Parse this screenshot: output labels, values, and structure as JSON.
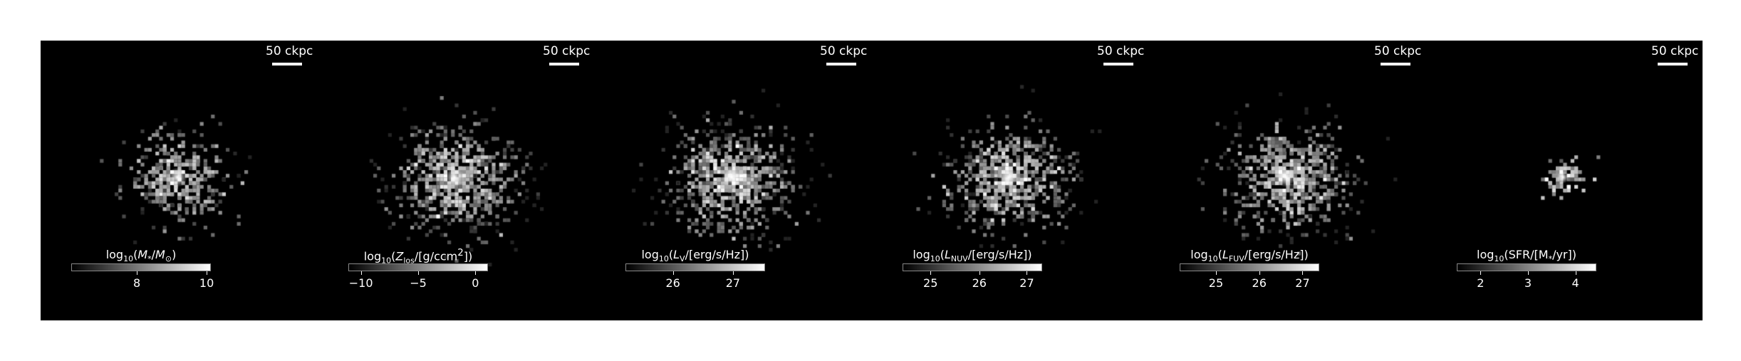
{
  "panels": [
    {
      "id": "stellar-mass",
      "scale_label": "50 ckpc",
      "cbar_label_html": "log<sub>10</sub>(<i>M</i><sub>*</sub>/<i>M</i><sub>⊙</sub>)",
      "ticks": [
        {
          "label": "8",
          "frac": 0.47
        },
        {
          "label": "10",
          "frac": 0.97
        }
      ],
      "seed": 11,
      "density": 0.55,
      "spread": 0.8
    },
    {
      "id": "metallicity",
      "scale_label": "50 ckpc",
      "cbar_label_html": "log<sub>10</sub>(<i>Z</i><sub>los</sub>/[g/ccm<sup>2</sup>])",
      "ticks": [
        {
          "label": "−10",
          "frac": 0.09
        },
        {
          "label": "−5",
          "frac": 0.5
        },
        {
          "label": "0",
          "frac": 0.91
        }
      ],
      "seed": 23,
      "density": 1.0,
      "spread": 1.0
    },
    {
      "id": "luminosity-v",
      "scale_label": "50 ckpc",
      "cbar_label_html": "log<sub>10</sub>(<i>L</i><sub>V</sub>/[erg/s/Hz])",
      "ticks": [
        {
          "label": "26",
          "frac": 0.34
        },
        {
          "label": "27",
          "frac": 0.77
        }
      ],
      "seed": 37,
      "density": 1.0,
      "spread": 1.0
    },
    {
      "id": "luminosity-nuv",
      "scale_label": "50 ckpc",
      "cbar_label_html": "log<sub>10</sub>(<i>L</i><sub>NUV</sub>/[erg/s/Hz])",
      "ticks": [
        {
          "label": "25",
          "frac": 0.2
        },
        {
          "label": "26",
          "frac": 0.55
        },
        {
          "label": "27",
          "frac": 0.89
        }
      ],
      "seed": 53,
      "density": 1.0,
      "spread": 1.0
    },
    {
      "id": "luminosity-fuv",
      "scale_label": "50 ckpc",
      "cbar_label_html": "log<sub>10</sub>(<i>L</i><sub>FUV</sub>/[erg/s/Hz])",
      "ticks": [
        {
          "label": "25",
          "frac": 0.26
        },
        {
          "label": "26",
          "frac": 0.57
        },
        {
          "label": "27",
          "frac": 0.88
        }
      ],
      "seed": 71,
      "density": 1.0,
      "spread": 1.0
    },
    {
      "id": "sfr",
      "scale_label": "50 ckpc",
      "cbar_label_html": "log<sub>10</sub>(SFR/[M<sub>*</sub>/yr])",
      "ticks": [
        {
          "label": "2",
          "frac": 0.17
        },
        {
          "label": "3",
          "frac": 0.51
        },
        {
          "label": "4",
          "frac": 0.85
        }
      ],
      "seed": 89,
      "density": 0.12,
      "spread": 0.35
    }
  ]
}
